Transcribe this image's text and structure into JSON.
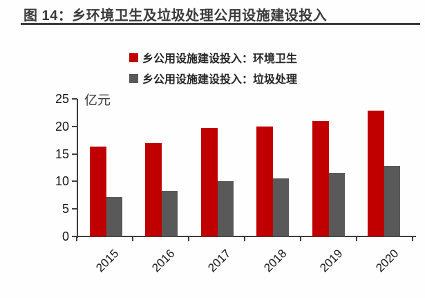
{
  "title": "图 14：乡环境卫生及垃圾处理公用设施建设投入",
  "chart_data": {
    "type": "bar",
    "title": "图 14：乡环境卫生及垃圾处理公用设施建设投入",
    "unit_label": "亿元",
    "categories": [
      "2015",
      "2016",
      "2017",
      "2018",
      "2019",
      "2020"
    ],
    "series": [
      {
        "name": "乡公用设施建设投入：环境卫生",
        "color": "#c00000",
        "values": [
          16.3,
          16.9,
          19.7,
          20.0,
          21.0,
          22.9
        ]
      },
      {
        "name": "乡公用设施建设投入：垃圾处理",
        "color": "#595959",
        "values": [
          7.2,
          8.3,
          10.1,
          10.5,
          11.5,
          12.8
        ]
      }
    ],
    "y_ticks": [
      0,
      5,
      10,
      15,
      20,
      25
    ],
    "ylim": [
      0,
      25
    ],
    "xlabel": "",
    "ylabel": "亿元",
    "grid": false,
    "legend_position": "top",
    "colors": {
      "axis": "#3f3f3f",
      "text": "#141414",
      "title": "#3a3a3a"
    }
  }
}
